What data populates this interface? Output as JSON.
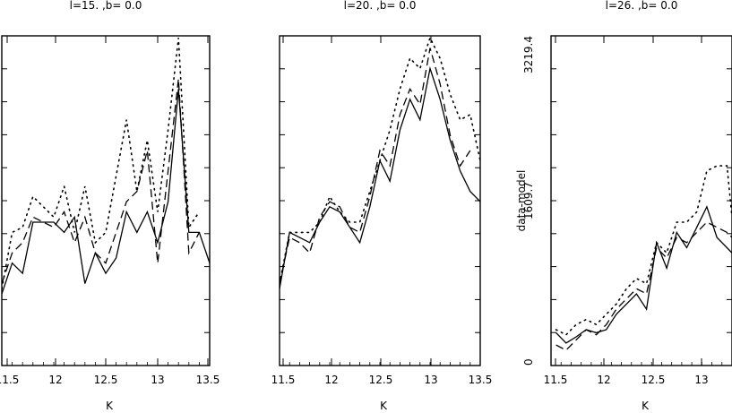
{
  "chart_data": [
    {
      "type": "line",
      "title": "l=15. ,b=   0.0",
      "xlabel": "K",
      "ylabel": "",
      "xlim": [
        11.5,
        13.5
      ],
      "ylim": [
        0,
        3219.4
      ],
      "xticks": [
        "11.5",
        "12",
        "12.5",
        "13",
        "13.5"
      ],
      "yticks": [],
      "series": [
        {
          "style": "solid",
          "x": [
            11.5,
            11.6,
            11.7,
            11.8,
            12.0,
            12.1,
            12.2,
            12.3,
            12.4,
            12.5,
            12.6,
            12.7,
            12.8,
            12.9,
            13.0,
            13.1,
            13.2,
            13.3,
            13.4,
            13.5
          ],
          "y": [
            700,
            1000,
            900,
            1400,
            1400,
            1300,
            1450,
            800,
            1100,
            900,
            1050,
            1500,
            1300,
            1500,
            1200,
            1600,
            2700,
            1300,
            1300,
            1000
          ]
        },
        {
          "style": "dashed",
          "x": [
            11.5,
            11.6,
            11.7,
            11.8,
            12.0,
            12.1,
            12.2,
            12.3,
            12.4,
            12.5,
            12.6,
            12.7,
            12.8,
            12.9,
            13.0,
            13.1,
            13.2,
            13.3,
            13.4
          ],
          "y": [
            800,
            1100,
            1200,
            1450,
            1350,
            1500,
            1200,
            1450,
            1100,
            1000,
            1300,
            1600,
            1700,
            2100,
            1000,
            1900,
            2800,
            1100,
            1300
          ]
        },
        {
          "style": "dotted",
          "x": [
            11.5,
            11.6,
            11.7,
            11.8,
            12.0,
            12.1,
            12.2,
            12.3,
            12.4,
            12.5,
            12.6,
            12.7,
            12.8,
            12.9,
            13.0,
            13.1,
            13.2,
            13.3,
            13.4
          ],
          "y": [
            750,
            1300,
            1350,
            1650,
            1450,
            1750,
            1300,
            1750,
            1200,
            1300,
            1850,
            2400,
            1700,
            2200,
            1500,
            2300,
            3200,
            1350,
            1500
          ]
        }
      ]
    },
    {
      "type": "line",
      "title": "l=20. ,b=   0.0",
      "xlabel": "K",
      "ylabel": "data-model",
      "xlim": [
        11.5,
        13.5
      ],
      "ylim": [
        0,
        3219.4
      ],
      "xticks": [
        "11.5",
        "12",
        "12.5",
        "13",
        "13.5"
      ],
      "yticks": [
        "0",
        "1609.7",
        "3219.4"
      ],
      "series": [
        {
          "style": "solid",
          "x": [
            11.5,
            11.6,
            11.7,
            11.8,
            11.9,
            12.0,
            12.1,
            12.2,
            12.3,
            12.4,
            12.5,
            12.6,
            12.7,
            12.8,
            12.9,
            13.0,
            13.1,
            13.2,
            13.3,
            13.4,
            13.5
          ],
          "y": [
            750,
            1300,
            1250,
            1200,
            1400,
            1550,
            1500,
            1350,
            1200,
            1550,
            2000,
            1800,
            2300,
            2600,
            2400,
            2900,
            2600,
            2200,
            1900,
            1700,
            1600
          ]
        },
        {
          "style": "dashed",
          "x": [
            11.5,
            11.6,
            11.7,
            11.8,
            11.9,
            12.0,
            12.1,
            12.2,
            12.3,
            12.4,
            12.5,
            12.6,
            12.7,
            12.8,
            12.9,
            13.0,
            13.1,
            13.2,
            13.3,
            13.4
          ],
          "y": [
            800,
            1250,
            1200,
            1100,
            1450,
            1600,
            1550,
            1350,
            1300,
            1650,
            2100,
            1950,
            2450,
            2700,
            2550,
            3100,
            2750,
            2250,
            1950,
            2100
          ]
        },
        {
          "style": "dotted",
          "x": [
            11.5,
            11.6,
            11.7,
            11.8,
            11.9,
            12.0,
            12.1,
            12.2,
            12.3,
            12.4,
            12.5,
            12.6,
            12.7,
            12.8,
            12.9,
            13.0,
            13.1,
            13.2,
            13.3,
            13.4,
            13.5
          ],
          "y": [
            800,
            1300,
            1300,
            1300,
            1400,
            1650,
            1500,
            1400,
            1400,
            1700,
            2000,
            2300,
            2700,
            3000,
            2900,
            3200,
            3000,
            2650,
            2400,
            2450,
            2000
          ]
        }
      ]
    },
    {
      "type": "line",
      "title": "l=26. ,b=   0.0",
      "xlabel": "K",
      "ylabel": "data-model",
      "xlim": [
        11.5,
        13.3
      ],
      "ylim": [
        0,
        3219.4
      ],
      "xticks": [
        "11.5",
        "12",
        "12.5",
        "13"
      ],
      "yticks": [
        "0",
        "1609.7",
        "3219.4"
      ],
      "series": [
        {
          "style": "solid",
          "x": [
            11.55,
            11.65,
            11.75,
            11.85,
            11.95,
            12.05,
            12.15,
            12.25,
            12.35,
            12.45,
            12.55,
            12.65,
            12.75,
            12.85,
            12.95,
            13.05,
            13.15,
            13.25,
            13.3
          ],
          "y": [
            320,
            220,
            280,
            350,
            320,
            350,
            500,
            600,
            700,
            550,
            1200,
            950,
            1300,
            1150,
            1350,
            1550,
            1250,
            1150,
            1100
          ]
        },
        {
          "style": "dashed",
          "x": [
            11.55,
            11.65,
            11.75,
            11.85,
            11.95,
            12.05,
            12.15,
            12.25,
            12.35,
            12.45,
            12.55,
            12.65,
            12.75,
            12.85,
            12.95,
            13.05,
            13.15,
            13.25,
            13.3
          ],
          "y": [
            200,
            150,
            250,
            350,
            300,
            400,
            550,
            650,
            750,
            700,
            1150,
            1050,
            1250,
            1200,
            1300,
            1400,
            1350,
            1300,
            1250
          ]
        },
        {
          "style": "dotted",
          "x": [
            11.55,
            11.65,
            11.75,
            11.85,
            11.95,
            12.05,
            12.15,
            12.25,
            12.35,
            12.45,
            12.55,
            12.65,
            12.75,
            12.85,
            12.95,
            13.05,
            13.15,
            13.25,
            13.3
          ],
          "y": [
            350,
            300,
            400,
            450,
            400,
            500,
            600,
            750,
            850,
            800,
            1200,
            1100,
            1400,
            1400,
            1500,
            1900,
            1950,
            1950,
            1450
          ]
        }
      ]
    }
  ]
}
